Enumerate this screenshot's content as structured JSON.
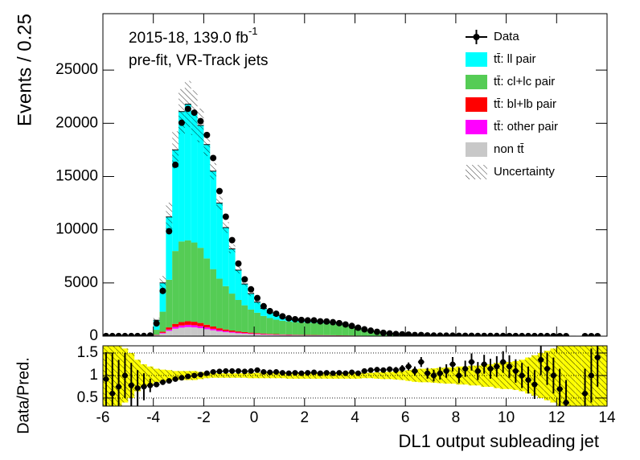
{
  "chart_data": [
    {
      "type": "stacked_histogram",
      "y_label": "Events / 0.25",
      "annotations": [
        {
          "text": "2015-18, 139.0 fb",
          "superscript": "-1"
        },
        {
          "text": "pre-fit, VR-Track jets"
        }
      ],
      "bins": [
        -6,
        -5.75,
        -5.5,
        -5.25,
        -5,
        -4.75,
        -4.5,
        -4.25,
        -4,
        -3.75,
        -3.5,
        -3.25,
        -3,
        -2.75,
        -2.5,
        -2.25,
        -2,
        -1.75,
        -1.5,
        -1.25,
        -1,
        -0.75,
        -0.5,
        -0.25,
        0,
        0.25,
        0.5,
        0.75,
        1,
        1.25,
        1.5,
        1.75,
        2,
        2.25,
        2.5,
        2.75,
        3,
        3.25,
        3.5,
        3.75,
        4,
        4.25,
        4.5,
        4.75,
        5,
        5.25,
        5.5,
        5.75,
        6,
        6.25,
        6.5,
        6.75,
        7,
        7.25,
        7.5,
        7.75,
        8,
        8.25,
        8.5,
        8.75,
        9,
        9.25,
        9.5,
        9.75,
        10,
        10.25,
        10.5,
        10.75,
        11,
        11.25,
        11.5,
        11.75,
        12,
        12.25,
        12.5,
        12.75,
        13,
        13.25,
        13.5,
        13.75,
        14
      ],
      "ylim": [
        0,
        30300
      ],
      "yticks": [
        0,
        5000,
        10000,
        15000,
        20000,
        25000
      ],
      "legend": "upper right",
      "data": {
        "name": "Data",
        "color": "#000000",
        "values": [
          10,
          5,
          6,
          8,
          7,
          9,
          15,
          60,
          1200,
          4250,
          9860,
          16100,
          20050,
          21360,
          21000,
          20200,
          18900,
          16740,
          13630,
          11220,
          9020,
          6820,
          5340,
          4400,
          3580,
          2810,
          2350,
          2110,
          1860,
          1680,
          1590,
          1520,
          1480,
          1480,
          1390,
          1380,
          1310,
          1220,
          1100,
          960,
          790,
          640,
          515,
          407,
          314,
          251,
          202,
          173,
          144,
          105,
          104,
          68,
          55,
          47,
          44,
          44,
          30,
          29,
          29,
          22,
          23,
          18,
          17,
          16,
          12,
          10,
          8,
          6,
          5,
          7,
          5,
          3,
          2,
          1,
          null,
          null,
          1,
          1,
          1,
          null
        ]
      },
      "series": [
        {
          "name": "tt̄: ll pair",
          "color": "#00ffff",
          "values": [
            0,
            0,
            0,
            0,
            0,
            0,
            0,
            0,
            900,
            2700,
            5900,
            9500,
            12200,
            12800,
            12200,
            11500,
            10700,
            9200,
            7100,
            5500,
            4200,
            2800,
            2000,
            1500,
            1000,
            700,
            500,
            400,
            300,
            220,
            180,
            150,
            120,
            120,
            100,
            100,
            90,
            70,
            60,
            50,
            40,
            30,
            20,
            20,
            15,
            10,
            10,
            10,
            8,
            8,
            6,
            5,
            4,
            3,
            3,
            3,
            2,
            2,
            2,
            2,
            1,
            1,
            1,
            1,
            1,
            1,
            1,
            1,
            1,
            0,
            0,
            0,
            0,
            0,
            0,
            0,
            0,
            0,
            0,
            0
          ]
        },
        {
          "name": "tt̄: cl+lc pair",
          "color": "#55cc55",
          "values": [
            0,
            0,
            0,
            0,
            0,
            0,
            0,
            0,
            468,
            1887,
            4475,
            6845,
            7580,
            7597,
            7447,
            7062,
            6227,
            5392,
            4657,
            4073,
            3472,
            2954,
            2520,
            2170,
            1919,
            1652,
            1485,
            1360,
            1285,
            1231,
            1188,
            1176,
            1164,
            1153,
            1121,
            1109,
            1077,
            1006,
            924,
            792,
            660,
            509,
            407,
            314,
            244,
            193,
            157,
            128,
            102,
            81,
            68,
            55,
            47,
            38,
            33,
            30,
            26,
            21,
            18,
            16,
            15,
            14,
            12,
            10,
            8,
            7,
            6,
            6,
            5,
            5,
            4,
            3,
            3,
            2,
            2,
            1,
            1,
            1,
            1,
            0
          ]
        },
        {
          "name": "tt̄: bl+lb pair",
          "color": "#ff0000",
          "values": [
            0,
            0,
            0,
            0,
            0,
            0,
            0,
            0,
            32,
            100,
            200,
            280,
            320,
            340,
            328,
            300,
            260,
            220,
            180,
            152,
            128,
            108,
            92,
            80,
            68,
            60,
            52,
            46,
            40,
            36,
            32,
            30,
            28,
            26,
            24,
            22,
            20,
            18,
            16,
            14,
            12,
            10,
            8,
            6,
            5,
            4,
            3,
            3,
            2,
            2,
            2,
            2,
            1,
            1,
            1,
            1,
            1,
            1,
            1,
            1,
            1,
            0,
            0,
            0,
            0,
            0,
            0,
            0,
            0,
            0,
            0,
            0,
            0,
            0,
            0,
            0,
            0,
            0,
            0,
            0
          ]
        },
        {
          "name": "tt̄: other pair",
          "color": "#ff00ff",
          "values": [
            0,
            0,
            0,
            0,
            0,
            0,
            0,
            0,
            20,
            63,
            125,
            175,
            200,
            213,
            205,
            188,
            163,
            138,
            113,
            95,
            80,
            68,
            58,
            50,
            43,
            38,
            33,
            29,
            25,
            23,
            20,
            19,
            18,
            16,
            15,
            14,
            13,
            11,
            10,
            9,
            8,
            6,
            5,
            4,
            3,
            3,
            2,
            2,
            2,
            1,
            1,
            1,
            1,
            1,
            1,
            0,
            0,
            0,
            0,
            0,
            0,
            0,
            0,
            0,
            0,
            0,
            0,
            0,
            0,
            0,
            0,
            0,
            0,
            0,
            0,
            0,
            0,
            0,
            0,
            0
          ]
        },
        {
          "name": "non tt̄",
          "color": "#c8c8c8",
          "values": [
            0,
            0,
            0,
            0,
            0,
            0,
            0,
            0,
            80,
            250,
            500,
            700,
            800,
            850,
            820,
            750,
            650,
            550,
            450,
            380,
            320,
            270,
            230,
            200,
            170,
            150,
            130,
            115,
            100,
            90,
            80,
            75,
            70,
            65,
            60,
            55,
            50,
            45,
            40,
            35,
            30,
            25,
            20,
            16,
            13,
            10,
            8,
            7,
            6,
            3,
            3,
            2,
            2,
            2,
            2,
            1,
            1,
            1,
            1,
            1,
            1,
            1,
            1,
            1,
            1,
            1,
            1,
            0,
            0,
            0,
            0,
            0,
            0,
            0,
            0,
            0,
            0,
            0,
            0,
            0
          ]
        }
      ],
      "uncertainty": {
        "name": "Uncertainty",
        "values": [
          0.7,
          0.7,
          0.7,
          0.6,
          0.5,
          0.35,
          0.25,
          0.2,
          0.15,
          0.13,
          0.12,
          0.1,
          0.1,
          0.1,
          0.1,
          0.08,
          0.06,
          0.05,
          0.05,
          0.05,
          0.05,
          0.05,
          0.05,
          0.06,
          0.06,
          0.06,
          0.06,
          0.06,
          0.06,
          0.07,
          0.07,
          0.07,
          0.07,
          0.07,
          0.07,
          0.07,
          0.07,
          0.07,
          0.07,
          0.07,
          0.07,
          0.06,
          0.06,
          0.07,
          0.08,
          0.08,
          0.09,
          0.1,
          0.12,
          0.14,
          0.15,
          0.15,
          0.16,
          0.17,
          0.18,
          0.18,
          0.2,
          0.2,
          0.22,
          0.22,
          0.25,
          0.25,
          0.28,
          0.3,
          0.3,
          0.32,
          0.35,
          0.4,
          0.45,
          0.5,
          0.55,
          0.6,
          0.7,
          0.7,
          0.8,
          0.8,
          0.8,
          0.8,
          0.8,
          0.8
        ]
      }
    },
    {
      "type": "ratio",
      "x_label": "DL1 output subleading jet",
      "y_label": "Data/Pred.",
      "xlim": [
        -6,
        14
      ],
      "xticks": [
        -6,
        -4,
        -2,
        0,
        2,
        4,
        6,
        8,
        10,
        12,
        14
      ],
      "ylim": [
        0.32,
        1.66
      ],
      "yticks": [
        0.5,
        1,
        1.5
      ],
      "reference": 1,
      "band_color": "#ffff00",
      "values": [
        0.92,
        0.6,
        0.75,
        1.0,
        0.78,
        0.72,
        0.75,
        0.78,
        0.8,
        0.85,
        0.88,
        0.92,
        0.95,
        0.98,
        1.0,
        1.02,
        1.05,
        1.08,
        1.09,
        1.1,
        1.1,
        1.1,
        1.09,
        1.1,
        1.12,
        1.08,
        1.07,
        1.08,
        1.06,
        1.05,
        1.06,
        1.05,
        1.06,
        1.07,
        1.05,
        1.06,
        1.05,
        1.06,
        1.05,
        1.07,
        1.05,
        1.1,
        1.12,
        1.13,
        1.12,
        1.14,
        1.12,
        1.15,
        1.2,
        1.1,
        1.3,
        1.05,
        1.0,
        1.05,
        1.1,
        1.25,
        1.0,
        1.15,
        1.3,
        1.1,
        1.25,
        1.15,
        1.2,
        1.3,
        1.2,
        1.1,
        1.0,
        0.9,
        0.8,
        1.35,
        1.15,
        1.0,
        0.7,
        0.4,
        null,
        null,
        0.6,
        1.0,
        1.4,
        null
      ],
      "errors": [
        0.6,
        0.9,
        0.6,
        0.5,
        0.5,
        0.4,
        0.3,
        0.15,
        0.03,
        0.03,
        0.03,
        0.03,
        0.03,
        0.03,
        0.03,
        0.03,
        0.03,
        0.03,
        0.03,
        0.03,
        0.03,
        0.03,
        0.03,
        0.03,
        0.03,
        0.03,
        0.03,
        0.03,
        0.03,
        0.03,
        0.03,
        0.03,
        0.03,
        0.03,
        0.03,
        0.03,
        0.03,
        0.03,
        0.03,
        0.03,
        0.03,
        0.04,
        0.04,
        0.05,
        0.05,
        0.06,
        0.07,
        0.08,
        0.09,
        0.1,
        0.11,
        0.12,
        0.13,
        0.14,
        0.15,
        0.16,
        0.17,
        0.18,
        0.19,
        0.2,
        0.21,
        0.22,
        0.23,
        0.24,
        0.25,
        0.26,
        0.28,
        0.3,
        0.32,
        0.34,
        0.36,
        0.4,
        0.45,
        0.5,
        null,
        null,
        0.55,
        0.6,
        0.65,
        null
      ]
    }
  ]
}
